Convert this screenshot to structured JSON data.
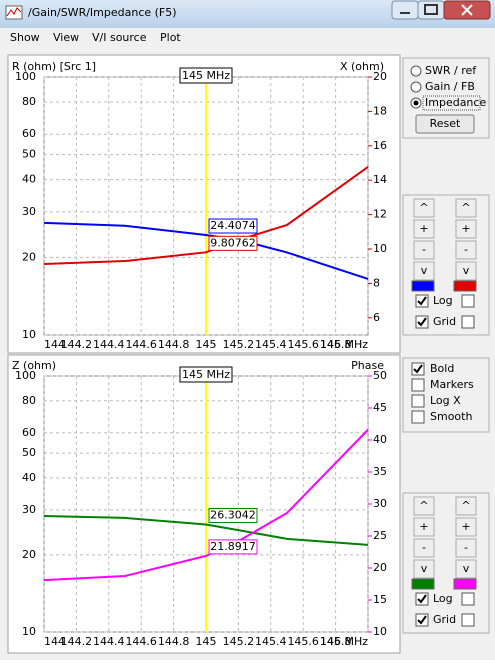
{
  "window": {
    "title": "/Gain/SWR/Impedance (F5)"
  },
  "menu": [
    "Show",
    "View",
    "V/I source",
    "Plot"
  ],
  "mode": {
    "options": [
      "SWR / ref",
      "Gain / FB",
      "Impedance"
    ],
    "selected": 2,
    "reset": "Reset"
  },
  "scale_buttons": [
    "^",
    "+",
    "-",
    "v"
  ],
  "checkbox_labels": {
    "log": "Log",
    "grid": "Grid"
  },
  "options": [
    {
      "label": "Bold",
      "checked": true
    },
    {
      "label": "Markers",
      "checked": false
    },
    {
      "label": "Log X",
      "checked": false
    },
    {
      "label": "Smooth",
      "checked": false
    }
  ],
  "chart_data": [
    {
      "type": "line",
      "y_label": "R (ohm) [Src 1]",
      "y2_label": "X (ohm)",
      "x": [
        144,
        144.5,
        145,
        145.2,
        145.5,
        146
      ],
      "xlim": [
        144,
        146
      ],
      "xticks": [
        144,
        144.2,
        144.4,
        144.6,
        144.8,
        145,
        145.2,
        145.4,
        145.6,
        145.8,
        {
          "value": 146,
          "label": "146 MHz"
        }
      ],
      "ylim": [
        10,
        100
      ],
      "yticks": [
        10,
        20,
        30,
        40,
        50,
        60,
        80,
        100
      ],
      "y_log": true,
      "y2lim": [
        5,
        20
      ],
      "y2ticks": [
        6,
        8,
        10,
        12,
        14,
        16,
        18,
        20
      ],
      "y2_log": false,
      "grid": true,
      "y2_grid": false,
      "cursor": {
        "x": 145,
        "label": "145 MHz",
        "color": "#ffff00",
        "index": 2
      },
      "series": [
        {
          "color": "#0000ff",
          "values": [
            27.2,
            26.5,
            24.4074,
            23.4,
            20.9,
            16.5
          ]
        },
        {
          "color": "#e00000",
          "axis": "y2",
          "values": [
            9.13,
            9.3,
            9.80762,
            10.52,
            11.4,
            14.77
          ]
        }
      ]
    },
    {
      "type": "line",
      "y_label": "Z (ohm)",
      "y2_label": "Phase",
      "x": [
        144,
        144.5,
        145,
        145.2,
        145.5,
        146
      ],
      "xlim": [
        144,
        146
      ],
      "xticks": [
        144,
        144.2,
        144.4,
        144.6,
        144.8,
        145,
        145.2,
        145.4,
        145.6,
        145.8,
        {
          "value": 146,
          "label": "146 MHz"
        }
      ],
      "ylim": [
        10,
        100
      ],
      "yticks": [
        10,
        20,
        30,
        40,
        50,
        60,
        80,
        100
      ],
      "y_log": true,
      "y2lim": [
        10,
        50
      ],
      "y2ticks": [
        10,
        15,
        20,
        25,
        30,
        35,
        40,
        45,
        50
      ],
      "y2_log": false,
      "grid": true,
      "y2_grid": false,
      "cursor": {
        "x": 145,
        "label": "145 MHz",
        "color": "#ffff00",
        "index": 2
      },
      "series": [
        {
          "color": "#008000",
          "values": [
            28.4,
            27.9,
            26.3042,
            25,
            23.1,
            21.9
          ]
        },
        {
          "color": "#ff00ff",
          "axis": "y2",
          "values": [
            18.1,
            18.75,
            21.8917,
            24.2,
            28.6,
            41.6
          ]
        }
      ]
    }
  ]
}
